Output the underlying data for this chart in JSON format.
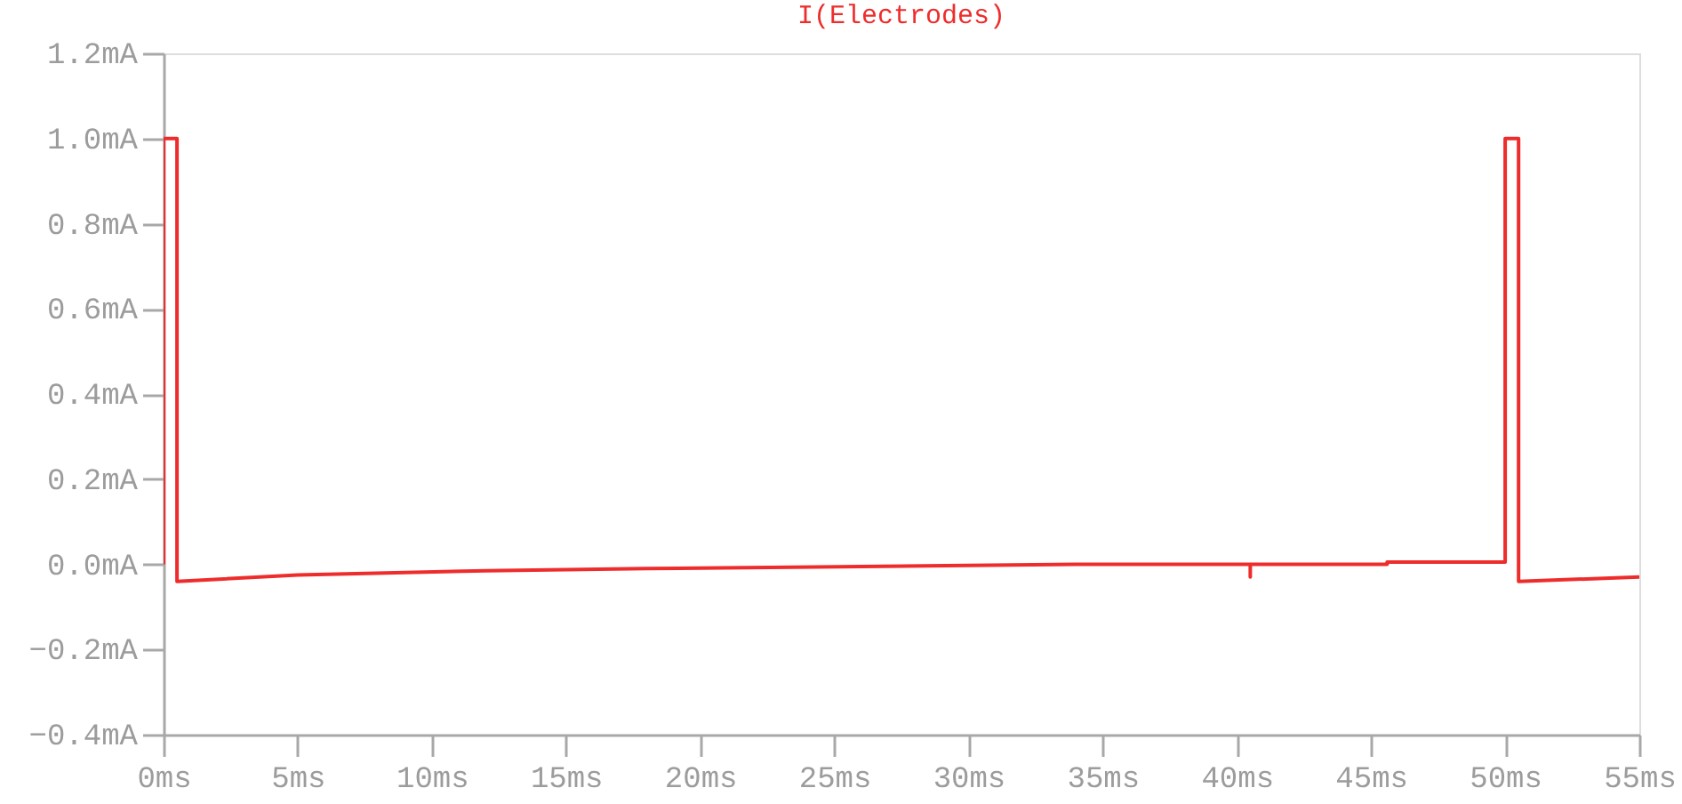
{
  "chart_data": {
    "type": "line",
    "title": "I(Electrodes)",
    "x": [
      0,
      0,
      0.5,
      0.5,
      5,
      12,
      18,
      26,
      34,
      40.5,
      40.5,
      40.5,
      45.6,
      45.6,
      50,
      50,
      50.5,
      50.5,
      55
    ],
    "series": [
      {
        "color": "#ee2c2c",
        "values": [
          0,
          1.0,
          1.0,
          -0.04,
          -0.025,
          -0.015,
          -0.01,
          -0.005,
          0,
          0,
          -0.03,
          0,
          0,
          0.005,
          0.005,
          1.0,
          1.0,
          -0.04,
          -0.03
        ]
      }
    ],
    "xlim": [
      0,
      55
    ],
    "ylim": [
      -0.4,
      1.2
    ],
    "xticks": [
      {
        "value": 0,
        "label": "0ms"
      },
      {
        "value": 5,
        "label": "5ms"
      },
      {
        "value": 10,
        "label": "10ms"
      },
      {
        "value": 15,
        "label": "15ms"
      },
      {
        "value": 20,
        "label": "20ms"
      },
      {
        "value": 25,
        "label": "25ms"
      },
      {
        "value": 30,
        "label": "30ms"
      },
      {
        "value": 35,
        "label": "35ms"
      },
      {
        "value": 40,
        "label": "40ms"
      },
      {
        "value": 45,
        "label": "45ms"
      },
      {
        "value": 50,
        "label": "50ms"
      },
      {
        "value": 55,
        "label": "55ms"
      }
    ],
    "yticks": [
      {
        "value": -0.4,
        "label": "−0.4mA"
      },
      {
        "value": -0.2,
        "label": "−0.2mA"
      },
      {
        "value": 0,
        "label": "0.0mA"
      },
      {
        "value": 0.2,
        "label": "0.2mA"
      },
      {
        "value": 0.4,
        "label": "0.4mA"
      },
      {
        "value": 0.6,
        "label": "0.6mA"
      },
      {
        "value": 0.8,
        "label": "0.8mA"
      },
      {
        "value": 1.0,
        "label": "1.0mA"
      },
      {
        "value": 1.2,
        "label": "1.2mA"
      }
    ],
    "grid": false,
    "marker": "none",
    "line_style": "solid"
  }
}
